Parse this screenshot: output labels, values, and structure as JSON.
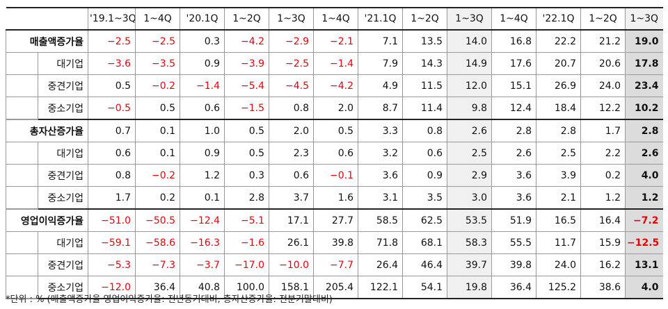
{
  "header": [
    "'19.1~3Q",
    "1~4Q",
    "'20.1Q",
    "1~2Q",
    "1~3Q",
    "1~4Q",
    "'21.1Q",
    "1~2Q",
    "1~3Q",
    "1~4Q",
    "'22.1Q",
    "1~2Q",
    "1~3Q"
  ],
  "groups": [
    {
      "label": "매출액증가율",
      "values": [
        "-2.5",
        "-2.5",
        "0.3",
        "-4.2",
        "-2.9",
        "-2.1",
        "7.1",
        "13.5",
        "14.0",
        "16.8",
        "22.2",
        "21.2",
        "19.0"
      ],
      "rows": [
        {
          "label": "대기업",
          "values": [
            "-3.6",
            "-3.5",
            "0.9",
            "-3.9",
            "-2.5",
            "-1.4",
            "7.9",
            "14.3",
            "14.9",
            "17.6",
            "20.7",
            "20.6",
            "17.8"
          ]
        },
        {
          "label": "중견기업",
          "values": [
            "0.5",
            "-0.2",
            "-1.4",
            "-5.4",
            "-4.5",
            "-4.2",
            "4.9",
            "11.5",
            "12.0",
            "15.1",
            "26.9",
            "24.0",
            "23.4"
          ]
        },
        {
          "label": "중소기업",
          "values": [
            "-0.5",
            "0.5",
            "0.6",
            "-1.5",
            "0.8",
            "2.0",
            "8.7",
            "11.4",
            "9.8",
            "12.4",
            "18.4",
            "12.2",
            "10.2"
          ]
        }
      ]
    },
    {
      "label": "총자산증가율",
      "values": [
        "0.7",
        "0.1",
        "1.0",
        "0.5",
        "2.0",
        "0.5",
        "3.3",
        "0.8",
        "2.6",
        "2.8",
        "2.8",
        "1.7",
        "2.8"
      ],
      "rows": [
        {
          "label": "대기업",
          "values": [
            "0.6",
            "0.1",
            "0.9",
            "0.5",
            "2.3",
            "0.6",
            "3.2",
            "0.6",
            "2.5",
            "2.6",
            "2.5",
            "2.2",
            "2.6"
          ]
        },
        {
          "label": "중견기업",
          "values": [
            "0.8",
            "-0.2",
            "1.2",
            "0.3",
            "0.6",
            "-0.1",
            "3.6",
            "0.9",
            "2.9",
            "3.6",
            "3.9",
            "0.2",
            "4.0"
          ]
        },
        {
          "label": "중소기업",
          "values": [
            "1.7",
            "0.2",
            "0.1",
            "2.8",
            "3.7",
            "1.6",
            "3.1",
            "3.5",
            "3.0",
            "3.6",
            "2.1",
            "1.2",
            "1.2"
          ]
        }
      ]
    },
    {
      "label": "영업이익증가율",
      "values": [
        "-51.0",
        "-50.5",
        "-12.4",
        "-5.1",
        "17.1",
        "27.7",
        "58.5",
        "62.5",
        "53.5",
        "51.9",
        "16.5",
        "16.4",
        "-7.2"
      ],
      "rows": [
        {
          "label": "대기업",
          "values": [
            "-59.1",
            "-58.6",
            "-16.3",
            "-1.6",
            "26.1",
            "39.8",
            "71.8",
            "68.1",
            "58.3",
            "55.5",
            "11.7",
            "15.9",
            "-12.5"
          ]
        },
        {
          "label": "중견기업",
          "values": [
            "-5.3",
            "-7.3",
            "-3.7",
            "-17.0",
            "-10.0",
            "-7.7",
            "26.4",
            "46.4",
            "39.7",
            "39.8",
            "24.0",
            "16.2",
            "13.1"
          ]
        },
        {
          "label": "중소기업",
          "values": [
            "-12.0",
            "36.4",
            "40.8",
            "100.0",
            "158.1",
            "205.4",
            "122.1",
            "54.1",
            "19.8",
            "36.4",
            "125.2",
            "38.6",
            "4.0"
          ]
        }
      ]
    }
  ],
  "footnote": "*단위 : % (매출액증가율·영업이익증가율: 전년동기대비, 총자산증가율: 전분기말대비)",
  "colors": {
    "negative": "#e8000b",
    "shade": "#f0f0f0",
    "shade_final": "#dcdcdc"
  }
}
